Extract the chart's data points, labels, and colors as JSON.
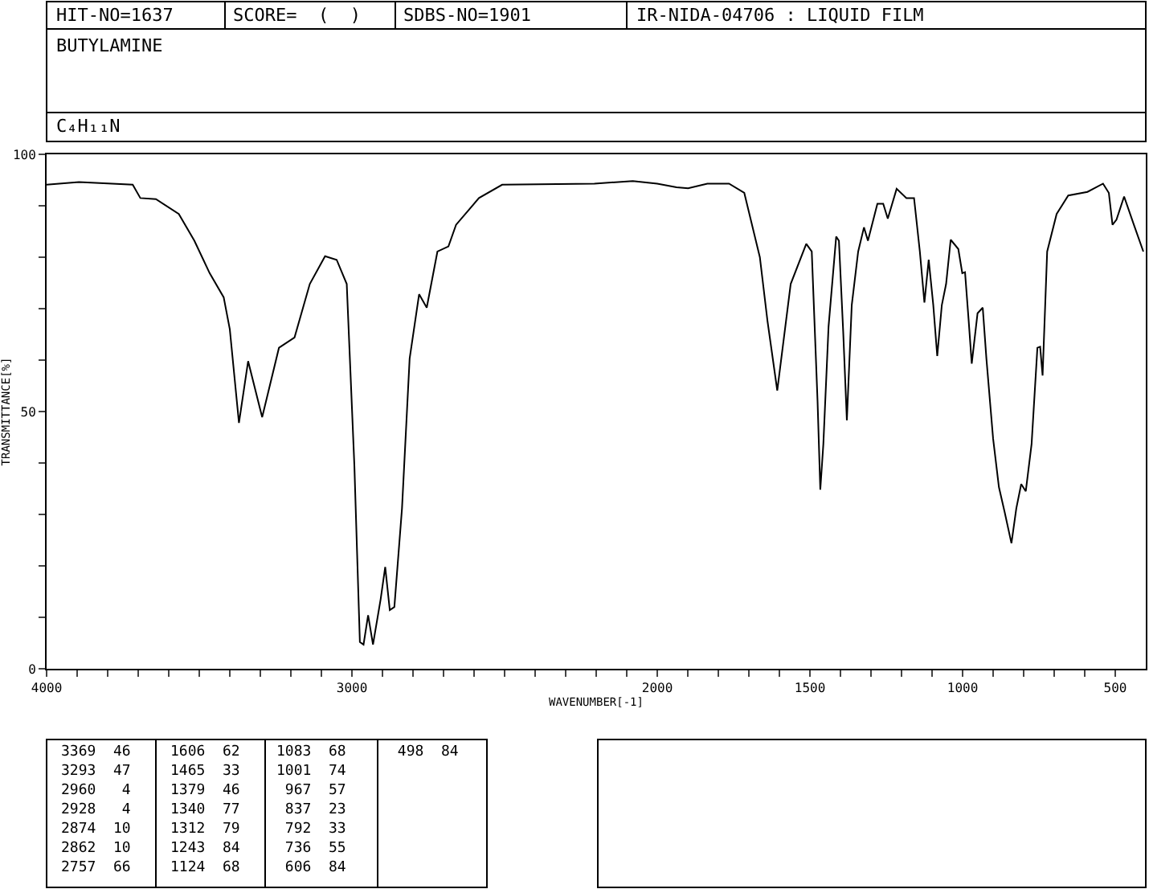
{
  "chart_data": {
    "type": "line",
    "title": "BUTYLAMINE",
    "subtitle": "C₄H₁₁N",
    "xlabel": "WAVENUMBER[-1]",
    "ylabel": "TRANSMITTANCE[%]",
    "x": [
      4000,
      3894,
      3718,
      3693,
      3642,
      3567,
      3516,
      3466,
      3420,
      3400,
      3370,
      3340,
      3294,
      3239,
      3188,
      3138,
      3088,
      3050,
      3017,
      2992,
      2974,
      2962,
      2947,
      2931,
      2906,
      2891,
      2876,
      2861,
      2836,
      2811,
      2780,
      2755,
      2720,
      2684,
      2659,
      2584,
      2508,
      2206,
      2080,
      2000,
      1937,
      1899,
      1836,
      1765,
      1715,
      1664,
      1639,
      1607,
      1563,
      1512,
      1494,
      1475,
      1466,
      1456,
      1439,
      1414,
      1405,
      1391,
      1379,
      1363,
      1342,
      1323,
      1310,
      1279,
      1260,
      1245,
      1216,
      1184,
      1159,
      1140,
      1125,
      1111,
      1096,
      1083,
      1068,
      1054,
      1039,
      1014,
      1001,
      992,
      980,
      970,
      951,
      934,
      922,
      900,
      881,
      862,
      840,
      824,
      808,
      793,
      774,
      755,
      746,
      738,
      723,
      692,
      654,
      591,
      540,
      521,
      509,
      496,
      471,
      439,
      408
    ],
    "series": [
      {
        "color": "#000000",
        "values": [
          94.1,
          94.6,
          94.1,
          91.5,
          91.3,
          88.4,
          83.2,
          76.9,
          72.2,
          66,
          47.8,
          59.8,
          48.9,
          62.4,
          64.4,
          74.8,
          80.2,
          79.5,
          74.8,
          39.5,
          5.2,
          4.7,
          10.4,
          4.7,
          13.5,
          19.8,
          11.4,
          12,
          31.2,
          60.3,
          72.8,
          70.2,
          81.1,
          82.1,
          86.3,
          91.5,
          94.1,
          94.3,
          94.8,
          94.3,
          93.6,
          93.4,
          94.3,
          94.3,
          92.5,
          80,
          67.6,
          54.1,
          74.8,
          82.6,
          81.1,
          52,
          34.8,
          43.7,
          66.5,
          84,
          83.2,
          65.5,
          48.3,
          70.7,
          81.1,
          85.8,
          83.2,
          90.4,
          90.4,
          87.5,
          93.3,
          91.5,
          91.5,
          81.1,
          71.2,
          79.5,
          70.7,
          60.8,
          70.7,
          74.8,
          83.4,
          81.6,
          76.9,
          77.1,
          67.6,
          59.3,
          69.1,
          70.2,
          60.3,
          44.7,
          35.3,
          30.4,
          24.4,
          31.2,
          35.9,
          34.5,
          43.7,
          62.4,
          62.6,
          57,
          81.1,
          88.4,
          92,
          92.7,
          94.3,
          92.5,
          86.3,
          87.3,
          91.8,
          86.3,
          81.1
        ]
      }
    ],
    "xlim": [
      4000,
      400
    ],
    "ylim": [
      0,
      100
    ],
    "xticks": [
      4000,
      {
        "value": 3900,
        "label": null
      },
      {
        "value": 3800,
        "label": null
      },
      {
        "value": 3700,
        "label": null
      },
      {
        "value": 3600,
        "label": null
      },
      {
        "value": 3500,
        "label": null
      },
      {
        "value": 3400,
        "label": null
      },
      {
        "value": 3300,
        "label": null
      },
      {
        "value": 3200,
        "label": null
      },
      {
        "value": 3100,
        "label": null
      },
      3000,
      {
        "value": 2900,
        "label": null
      },
      {
        "value": 2800,
        "label": null
      },
      {
        "value": 2700,
        "label": null
      },
      {
        "value": 2600,
        "label": null
      },
      {
        "value": 2500,
        "label": null
      },
      {
        "value": 2400,
        "label": null
      },
      {
        "value": 2300,
        "label": null
      },
      {
        "value": 2200,
        "label": null
      },
      {
        "value": 2100,
        "label": null
      },
      2000,
      {
        "value": 1900,
        "label": null
      },
      {
        "value": 1800,
        "label": null
      },
      {
        "value": 1700,
        "label": null
      },
      {
        "value": 1600,
        "label": null
      },
      1500,
      {
        "value": 1400,
        "label": null
      },
      {
        "value": 1300,
        "label": null
      },
      {
        "value": 1200,
        "label": null
      },
      {
        "value": 1100,
        "label": null
      },
      1000,
      {
        "value": 900,
        "label": null
      },
      {
        "value": 800,
        "label": null
      },
      {
        "value": 700,
        "label": null
      },
      {
        "value": 600,
        "label": null
      },
      500
    ],
    "yticks": [
      0,
      {
        "value": 10,
        "label": null
      },
      {
        "value": 20,
        "label": null
      },
      {
        "value": 30,
        "label": null
      },
      {
        "value": 40,
        "label": null
      },
      50,
      {
        "value": 60,
        "label": null
      },
      {
        "value": 70,
        "label": null
      },
      {
        "value": 80,
        "label": null
      },
      {
        "value": 90,
        "label": null
      },
      100
    ],
    "marker": "none",
    "line_style": "solid",
    "annotations": [
      "HIT-NO=1637",
      "SCORE=  (  )",
      "SDBS-NO=1901",
      "IR-NIDA-04706 : LIQUID FILM",
      "3369  46",
      "3293  47",
      "2960   4",
      "2928   4",
      "2874  10",
      "2862  10",
      "2757  66",
      "1606  62",
      "1465  33",
      "1379  46",
      "1340  77",
      "1312  79",
      "1243  84",
      "1124  68",
      "1083  68",
      "1001  74",
      " 967  57",
      " 837  23",
      " 792  33",
      " 736  55",
      " 606  84",
      " 498  84"
    ]
  }
}
